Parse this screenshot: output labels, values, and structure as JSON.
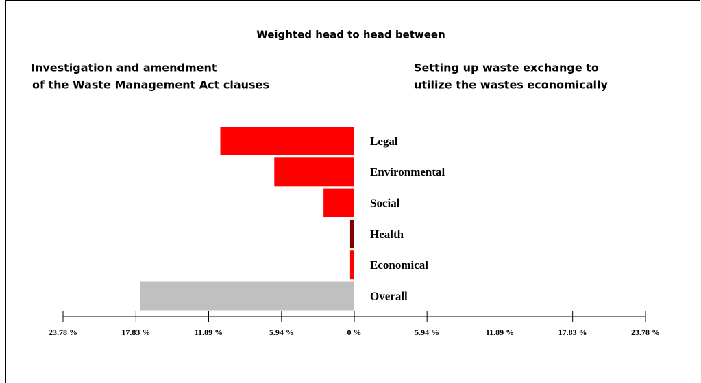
{
  "chart_data": {
    "type": "bar",
    "orientation": "horizontal",
    "title": "Weighted head to head between",
    "left_label": [
      "Investigation and amendment",
      "of the Waste Management Act clauses"
    ],
    "right_label": [
      "Setting up waste exchange to",
      "utilize the wastes economically"
    ],
    "categories": [
      "Legal",
      "Environmental",
      "Social",
      "Health",
      "Economical",
      "Overall"
    ],
    "values": [
      -10.94,
      -6.53,
      -2.51,
      -0.34,
      -0.34,
      -17.48
    ],
    "colors": [
      "#ff0000",
      "#ff0000",
      "#ff0000",
      "#800000",
      "#ff0000",
      "#c0c0c0"
    ],
    "xlim": [
      -23.78,
      23.78
    ],
    "xticks": [
      {
        "value": -23.78,
        "label": "23.78 %"
      },
      {
        "value": -17.83,
        "label": "17.83 %"
      },
      {
        "value": -11.89,
        "label": "11.89 %"
      },
      {
        "value": -5.94,
        "label": "5.94 %"
      },
      {
        "value": 0,
        "label": "0 %"
      },
      {
        "value": 5.94,
        "label": "5.94 %"
      },
      {
        "value": 11.89,
        "label": "11.89 %"
      },
      {
        "value": 17.83,
        "label": "17.83 %"
      },
      {
        "value": 23.78,
        "label": "23.78 %"
      }
    ]
  }
}
